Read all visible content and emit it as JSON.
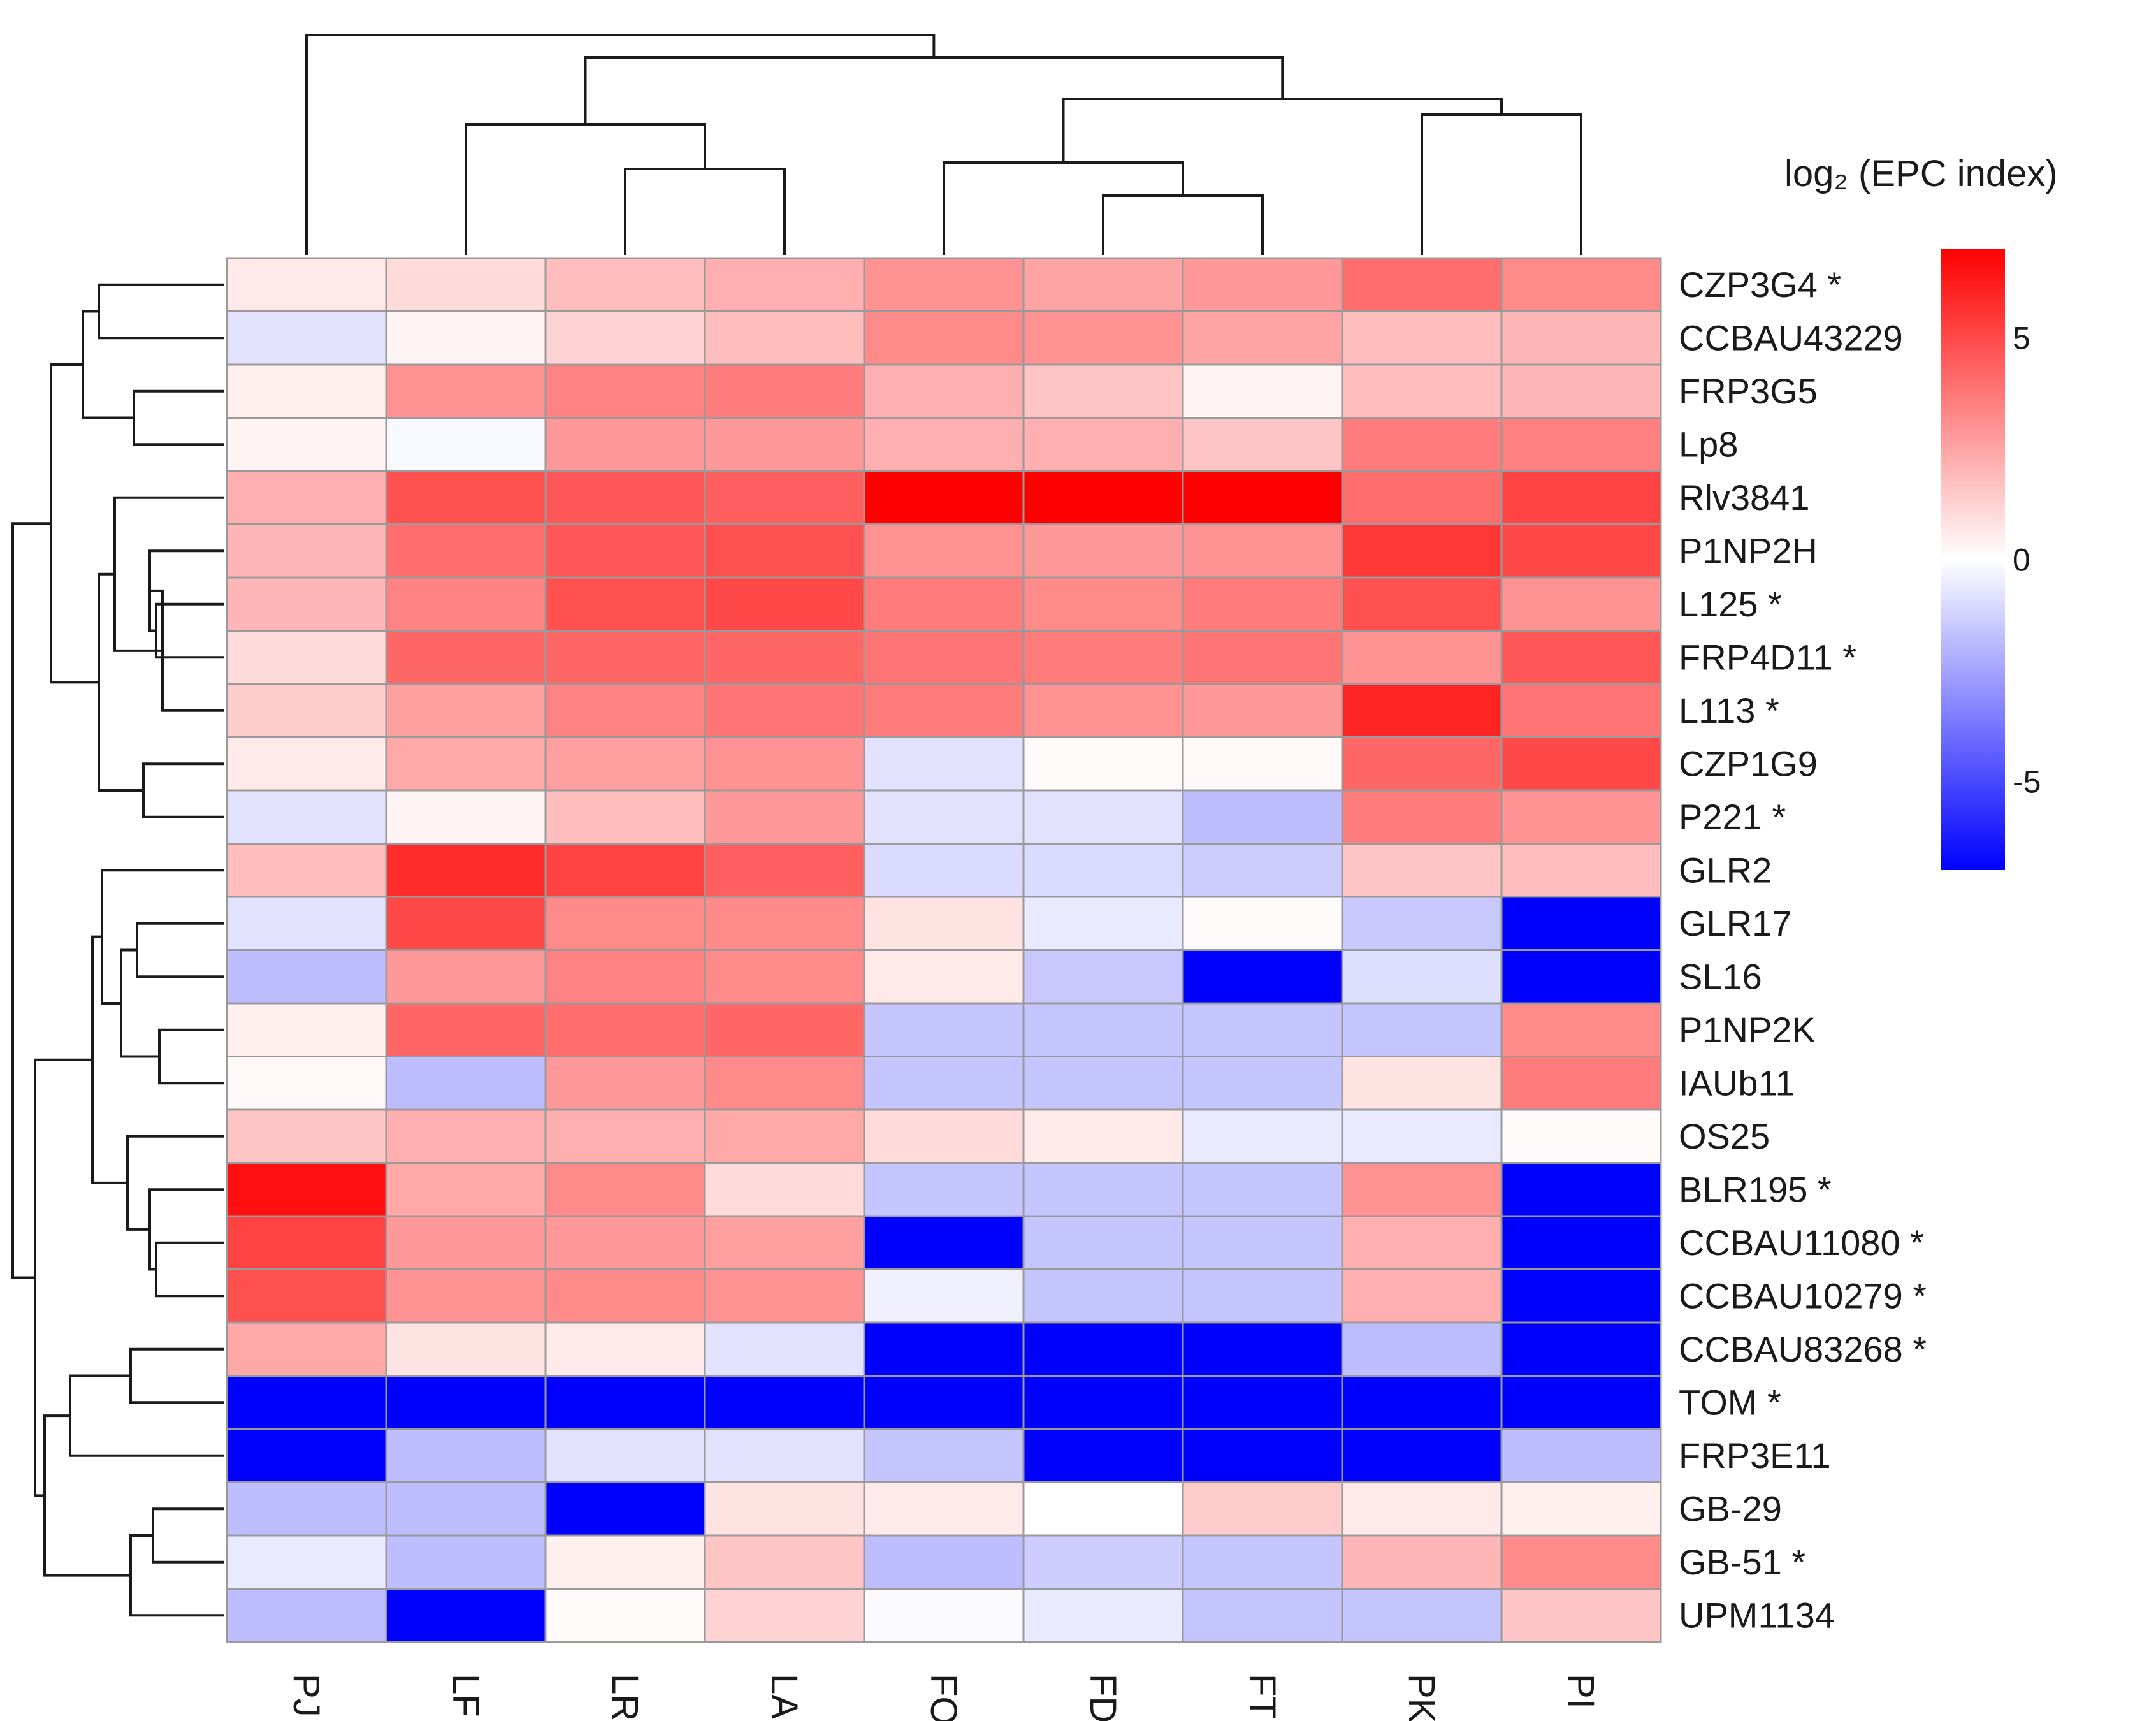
{
  "chart_data": {
    "type": "heatmap",
    "title": "",
    "legend_title": "log₂ (EPC index)",
    "legend_ticks": [
      5,
      0,
      -5
    ],
    "value_range": [
      -7,
      7
    ],
    "colors": {
      "low": "#0000ff",
      "mid": "#ffffff",
      "high": "#ff0000"
    },
    "columns": [
      "PJ",
      "LF",
      "LR",
      "LA",
      "FO",
      "FD",
      "FT",
      "PK",
      "PI"
    ],
    "rows": [
      "CZP3G4 *",
      "CCBAU43229",
      "FRP3G5",
      "Lp8",
      "Rlv3841",
      "P1NP2H",
      "L125 *",
      "FRP4D11 *",
      "L113 *",
      "CZP1G9",
      "P221 *",
      "GLR2",
      "GLR17",
      "SL16",
      "P1NP2K",
      "IAUb11",
      "OS25",
      "BLR195 *",
      "CCBAU11080 *",
      "CCBAU10279 *",
      "CCBAU83268 *",
      "TOM *",
      "FRP3E11",
      "GB-29",
      "GB-51 *",
      "UPM1134"
    ],
    "values": [
      [
        0.6,
        1.0,
        1.8,
        2.2,
        3.0,
        2.5,
        2.8,
        4.0,
        3.2
      ],
      [
        -0.8,
        0.3,
        1.2,
        1.8,
        3.2,
        3.0,
        2.5,
        1.8,
        2.0
      ],
      [
        0.4,
        3.0,
        3.4,
        3.6,
        2.2,
        1.6,
        0.3,
        1.8,
        2.0
      ],
      [
        0.3,
        -0.2,
        2.8,
        2.8,
        2.2,
        2.2,
        1.6,
        3.6,
        3.5
      ],
      [
        2.2,
        4.8,
        4.6,
        4.4,
        7.0,
        7.0,
        7.0,
        4.0,
        5.2
      ],
      [
        2.0,
        4.0,
        4.6,
        4.8,
        3.0,
        2.8,
        3.0,
        5.5,
        5.0
      ],
      [
        2.0,
        3.4,
        4.8,
        5.0,
        3.6,
        3.2,
        3.6,
        4.8,
        3.0
      ],
      [
        1.0,
        4.2,
        4.2,
        4.2,
        3.8,
        3.6,
        3.8,
        3.0,
        4.6
      ],
      [
        1.4,
        2.6,
        3.4,
        3.8,
        3.6,
        3.0,
        2.8,
        6.0,
        3.8
      ],
      [
        0.6,
        2.4,
        2.6,
        3.0,
        -0.8,
        0.1,
        0.2,
        4.2,
        5.0
      ],
      [
        -0.8,
        0.3,
        1.8,
        2.8,
        -0.8,
        -0.8,
        -1.8,
        3.6,
        3.0
      ],
      [
        1.8,
        5.8,
        5.2,
        4.4,
        -1.0,
        -1.0,
        -1.4,
        1.6,
        1.8
      ],
      [
        -0.8,
        5.0,
        3.2,
        3.2,
        0.8,
        -0.6,
        0.1,
        -1.5,
        -7.0
      ],
      [
        -1.8,
        2.8,
        3.4,
        3.2,
        0.6,
        -1.5,
        -7.0,
        -0.9,
        -7.0
      ],
      [
        0.4,
        4.2,
        4.0,
        4.2,
        -1.6,
        -1.6,
        -1.6,
        -1.6,
        3.2
      ],
      [
        0.2,
        -1.8,
        2.8,
        3.2,
        -1.6,
        -1.6,
        -1.6,
        0.8,
        3.6
      ],
      [
        1.6,
        2.2,
        2.2,
        2.4,
        1.0,
        0.6,
        -0.6,
        -0.6,
        0.1
      ],
      [
        6.6,
        2.4,
        3.2,
        1.0,
        -1.6,
        -1.6,
        -1.6,
        3.0,
        -7.0
      ],
      [
        5.2,
        2.8,
        2.8,
        2.6,
        -7.0,
        -1.6,
        -1.6,
        2.2,
        -7.0
      ],
      [
        4.8,
        3.0,
        3.2,
        3.0,
        -0.4,
        -1.6,
        -1.6,
        2.2,
        -7.0
      ],
      [
        2.4,
        0.8,
        0.6,
        -0.8,
        -7.0,
        -7.0,
        -7.0,
        -1.8,
        -7.0
      ],
      [
        -7.0,
        -7.0,
        -7.0,
        -7.0,
        -7.0,
        -7.0,
        -7.0,
        -7.0,
        -7.0
      ],
      [
        -7.0,
        -1.8,
        -0.8,
        -0.8,
        -1.6,
        -7.0,
        -7.0,
        -7.0,
        -1.8
      ],
      [
        -1.8,
        -1.8,
        -7.0,
        0.8,
        0.6,
        0.0,
        1.4,
        0.6,
        0.4
      ],
      [
        -0.6,
        -1.8,
        0.4,
        1.6,
        -1.8,
        -1.4,
        -1.6,
        2.0,
        3.2
      ],
      [
        -1.8,
        -7.0,
        0.1,
        1.2,
        -0.1,
        -0.6,
        -1.6,
        -1.6,
        1.6
      ]
    ]
  }
}
